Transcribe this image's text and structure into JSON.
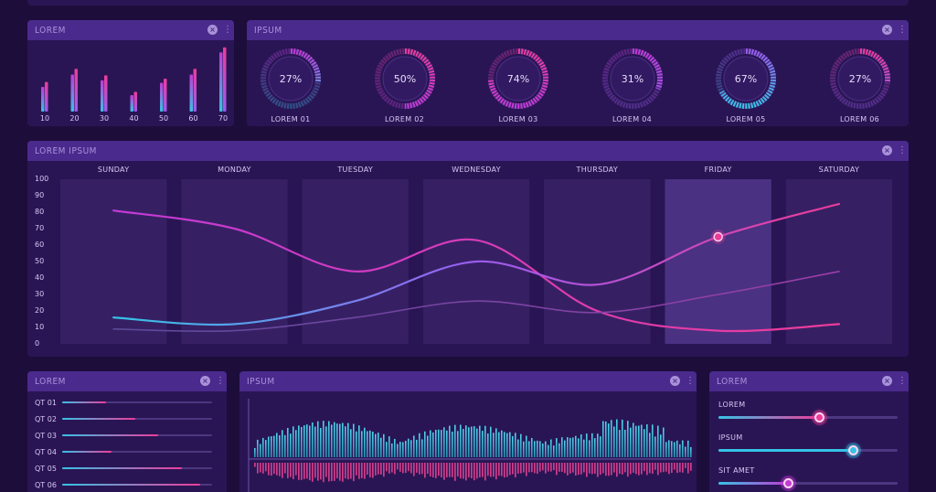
{
  "colors": {
    "bg": "#1d0d3b",
    "panel": "#2a1554",
    "header": "#4a2a8c",
    "pink": "#ec3c9a",
    "magenta": "#c23ad6",
    "cyan": "#36c3e6",
    "violet": "#9a5cf0"
  },
  "panels": {
    "top_left": {
      "title": "LOREM"
    },
    "top_right": {
      "title": "IPSUM"
    },
    "main": {
      "title": "LOREM IPSUM"
    },
    "bottom_left": {
      "title": "LOREM"
    },
    "bottom_mid": {
      "title": "IPSUM"
    },
    "bottom_right": {
      "title": "LOREM"
    }
  },
  "icons": {
    "close": "close-icon",
    "menu": "more-vertical-icon"
  },
  "chart_data": [
    {
      "type": "bar",
      "categories": [
        "10",
        "20",
        "30",
        "40",
        "50",
        "60",
        "70"
      ],
      "series": [
        {
          "values": [
            30,
            45,
            38,
            20,
            35,
            45,
            72
          ]
        },
        {
          "values": [
            36,
            52,
            44,
            24,
            40,
            52,
            78
          ]
        }
      ]
    },
    {
      "type": "pie",
      "gauges": [
        {
          "label": "LOREM 01",
          "value": 27,
          "text": "27%"
        },
        {
          "label": "LOREM 02",
          "value": 50,
          "text": "50%"
        },
        {
          "label": "LOREM 03",
          "value": 74,
          "text": "74%"
        },
        {
          "label": "LOREM 04",
          "value": 31,
          "text": "31%"
        },
        {
          "label": "LOREM 05",
          "value": 67,
          "text": "67%"
        },
        {
          "label": "LOREM 06",
          "value": 27,
          "text": "27%"
        }
      ]
    },
    {
      "type": "line",
      "categories": [
        "SUNDAY",
        "MONDAY",
        "TUESDAY",
        "WEDNESDAY",
        "THURSDAY",
        "FRIDAY",
        "SATURDAY"
      ],
      "yticks": [
        "100",
        "90",
        "80",
        "70",
        "60",
        "50",
        "40",
        "30",
        "20",
        "10",
        "0"
      ],
      "ylim": [
        0,
        100
      ],
      "highlight_category": "FRIDAY",
      "series": [
        {
          "values": [
            81,
            70,
            44,
            63,
            20,
            8,
            12
          ]
        },
        {
          "values": [
            16,
            12,
            26,
            50,
            36,
            65,
            85
          ]
        },
        {
          "values": [
            9,
            8,
            16,
            26,
            19,
            30,
            44
          ]
        }
      ],
      "marker": {
        "category": "FRIDAY",
        "value": 65
      }
    },
    {
      "type": "bar",
      "rows": [
        {
          "label": "QT 01",
          "value": 0.29,
          "color": "#ec3c9a"
        },
        {
          "label": "QT 02",
          "value": 0.49,
          "color": "#ec3c9a"
        },
        {
          "label": "QT 03",
          "value": 0.64,
          "color": "#ec3c9a"
        },
        {
          "label": "QT 04",
          "value": 0.33,
          "color": "#ec3c9a"
        },
        {
          "label": "QT 05",
          "value": 0.8,
          "color": "#ec3c9a"
        },
        {
          "label": "QT 06",
          "value": 0.92,
          "color": "#ec3c9a"
        }
      ]
    }
  ],
  "sliders": [
    {
      "label": "LOREM",
      "value": 0.56,
      "color": "#ec3c9a"
    },
    {
      "label": "IPSUM",
      "value": 0.75,
      "color": "#36c3e6"
    },
    {
      "label": "SIT AMET",
      "value": 0.39,
      "color": "#c23ad6"
    }
  ]
}
